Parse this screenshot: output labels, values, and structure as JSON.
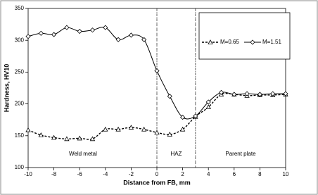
{
  "chart_data": {
    "type": "line",
    "x_label": "Distance from FB, mm",
    "y_label": "Hardness, HV10",
    "x": [
      -10,
      -9,
      -8,
      -7,
      -6,
      -5,
      -4,
      -3,
      -2,
      -1,
      0,
      1,
      2,
      3,
      4,
      5,
      6,
      7,
      8,
      9,
      10
    ],
    "series": [
      {
        "name": "M=0.65",
        "color": "#000000",
        "dash": true,
        "marker": "triangle",
        "values": [
          159,
          151,
          147,
          145,
          146,
          145,
          160,
          160,
          163,
          160,
          155,
          152,
          160,
          180,
          195,
          215,
          215,
          213,
          214,
          214,
          215
        ]
      },
      {
        "name": "M=1.51",
        "color": "#000000",
        "dash": false,
        "marker": "diamond",
        "values": [
          306,
          311,
          309,
          320,
          314,
          316,
          320,
          301,
          308,
          301,
          252,
          212,
          179,
          181,
          203,
          218,
          215,
          216,
          215,
          216,
          216
        ]
      }
    ],
    "xlim": [
      -10,
      10
    ],
    "xticks": [
      -10,
      -8,
      -6,
      -4,
      -2,
      0,
      2,
      4,
      6,
      8,
      10
    ],
    "ylim": [
      100,
      350
    ],
    "yticks": [
      100,
      150,
      200,
      250,
      300,
      350
    ],
    "vlines": [
      0,
      3
    ],
    "annotations": [
      "Weld metal",
      "HAZ",
      "Parent plate"
    ],
    "grid": false,
    "legend_position": "upper right"
  }
}
